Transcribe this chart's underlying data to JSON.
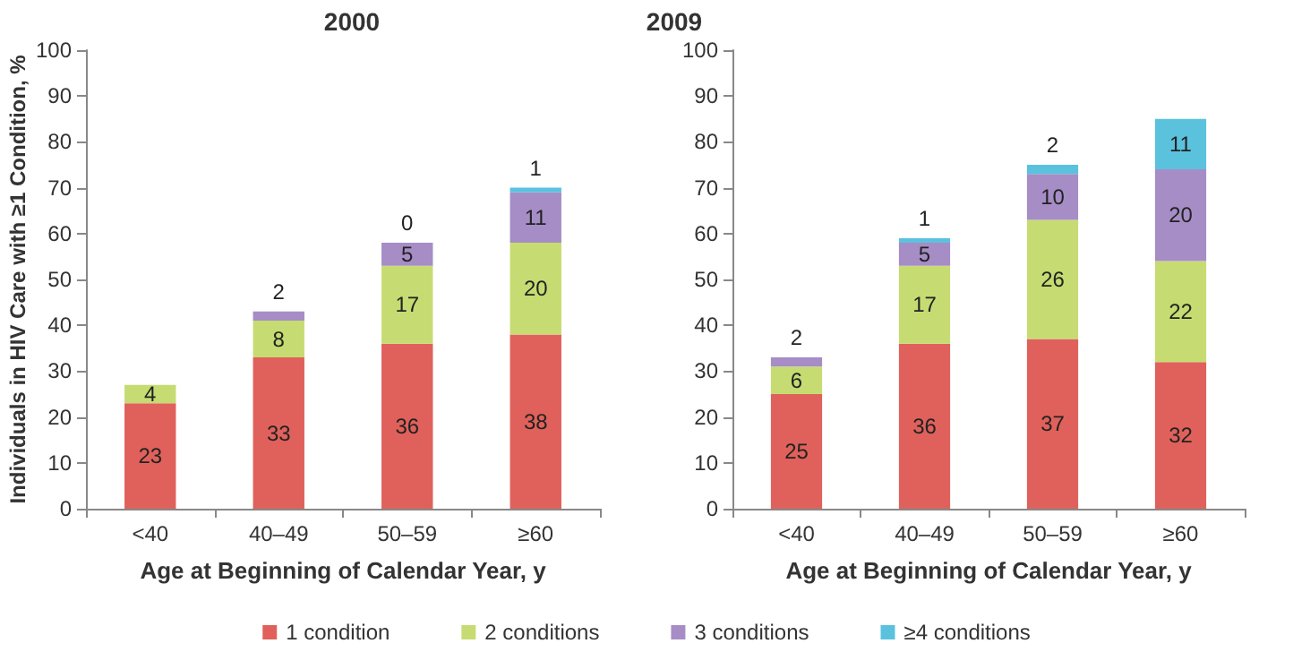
{
  "chart_data": [
    {
      "type": "bar",
      "title": "2000",
      "xlabel": "Age at Beginning of Calendar Year, y",
      "ylabel": "Individuals in HIV Care with ≥1 Condition, %",
      "categories": [
        "<40",
        "40–49",
        "50–59",
        "≥60"
      ],
      "stacked": true,
      "ylim": [
        0,
        100
      ],
      "yticks": [
        0,
        10,
        20,
        30,
        40,
        50,
        60,
        70,
        80,
        90,
        100
      ],
      "grid": false,
      "legend": "bottom",
      "data_labels": true,
      "series": [
        {
          "name": "1 condition",
          "color": "#e0615b",
          "values": [
            23,
            33,
            36,
            38
          ]
        },
        {
          "name": "2 conditions",
          "color": "#c6dc72",
          "values": [
            4,
            8,
            17,
            20
          ]
        },
        {
          "name": "3 conditions",
          "color": "#a68dc6",
          "values": [
            null,
            2,
            5,
            11
          ]
        },
        {
          "name": "≥4 conditions",
          "color": "#5bc2de",
          "values": [
            null,
            null,
            0,
            1
          ]
        }
      ]
    },
    {
      "type": "bar",
      "title": "2009",
      "xlabel": "Age at Beginning of Calendar Year, y",
      "categories": [
        "<40",
        "40–49",
        "50–59",
        "≥60"
      ],
      "stacked": true,
      "ylim": [
        0,
        100
      ],
      "yticks": [
        0,
        10,
        20,
        30,
        40,
        50,
        60,
        70,
        80,
        90,
        100
      ],
      "grid": false,
      "data_labels": true,
      "series": [
        {
          "color": "#e0615b",
          "values": [
            25,
            36,
            37,
            32
          ]
        },
        {
          "color": "#c6dc72",
          "values": [
            6,
            17,
            26,
            22
          ]
        },
        {
          "color": "#a68dc6",
          "values": [
            2,
            5,
            10,
            20
          ]
        },
        {
          "color": "#5bc2de",
          "values": [
            null,
            1,
            2,
            11
          ]
        }
      ]
    }
  ]
}
